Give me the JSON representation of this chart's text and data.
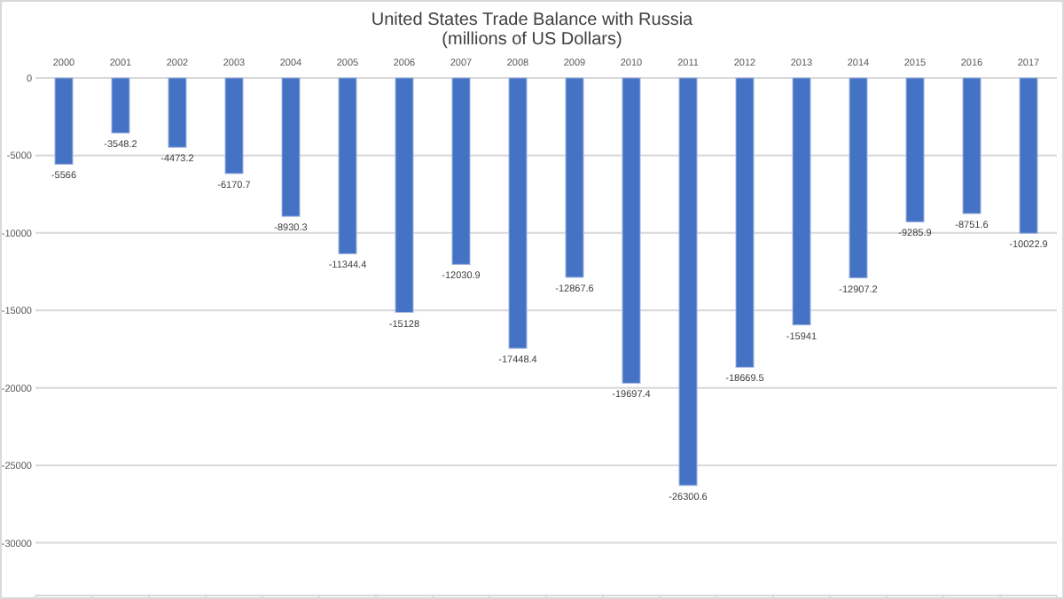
{
  "chart_data": {
    "type": "bar",
    "title": "United States Trade Balance with Russia",
    "subtitle": "(millions of US Dollars)",
    "categories": [
      "2000",
      "2001",
      "2002",
      "2003",
      "2004",
      "2005",
      "2006",
      "2007",
      "2008",
      "2009",
      "2010",
      "2011",
      "2012",
      "2013",
      "2014",
      "2015",
      "2016",
      "2017"
    ],
    "values": [
      -5566,
      -3548.2,
      -4473.2,
      -6170.7,
      -8930.3,
      -11344.4,
      -15128,
      -12030.9,
      -17448.4,
      -12867.6,
      -19697.4,
      -26300.6,
      -18669.5,
      -15941,
      -12907.2,
      -9285.9,
      -8751.6,
      -10022.9
    ],
    "color": "#4472c4",
    "ylim": [
      -33400,
      0
    ],
    "yticks": [
      0,
      -5000,
      -10000,
      -15000,
      -20000,
      -25000,
      -30000
    ],
    "grid": "y",
    "data_labels": true
  }
}
